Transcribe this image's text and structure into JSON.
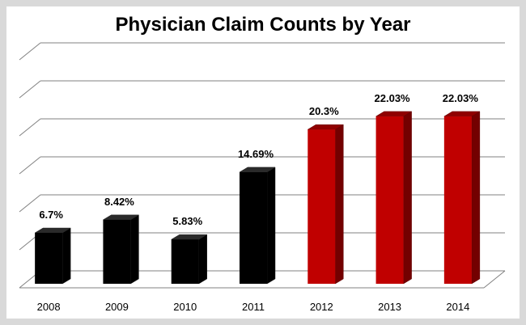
{
  "chart_data": {
    "type": "bar",
    "title": "Physician Claim Counts by Year",
    "categories": [
      "2008",
      "2009",
      "2010",
      "2011",
      "2012",
      "2013",
      "2014"
    ],
    "values": [
      6.7,
      8.42,
      5.83,
      14.69,
      20.3,
      22.03,
      22.03
    ],
    "data_labels": [
      "6.7%",
      "8.42%",
      "5.83%",
      "14.69%",
      "20.3%",
      "22.03%",
      "22.03%"
    ],
    "bar_colors": [
      "#000000",
      "#000000",
      "#000000",
      "#000000",
      "#c00000",
      "#c00000",
      "#c00000"
    ],
    "ylim": [
      0,
      25
    ],
    "grid": true,
    "style": "3d-column"
  }
}
